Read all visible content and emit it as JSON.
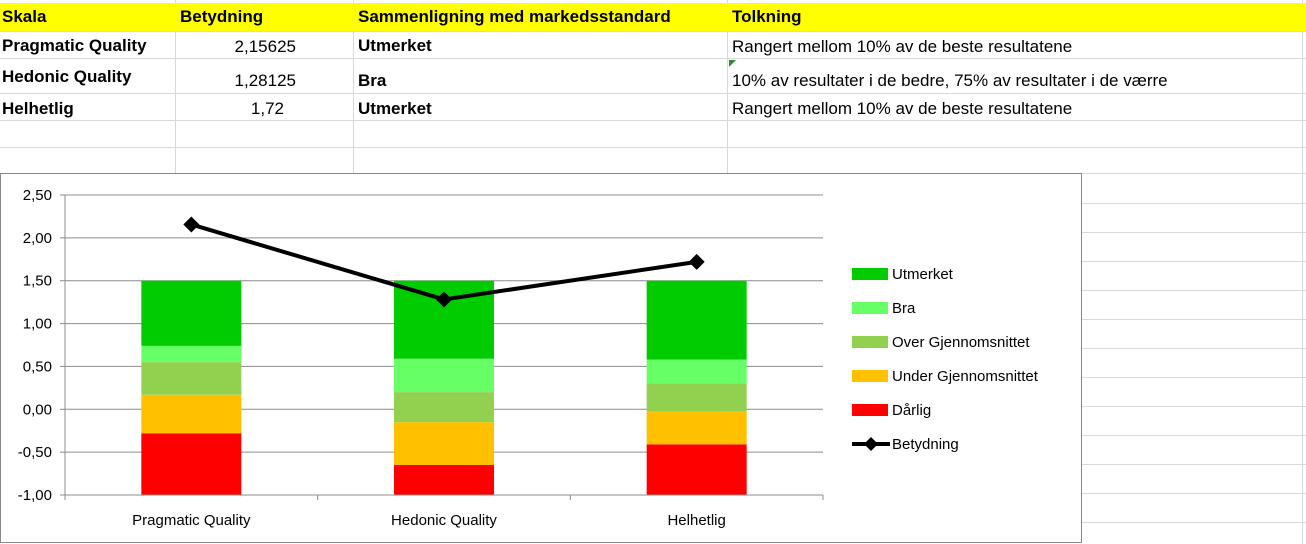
{
  "table": {
    "headers": [
      "Skala",
      "Betydning",
      "Sammenligning med markedsstandard",
      "Tolkning"
    ],
    "rows": [
      {
        "skala": "Pragmatic Quality",
        "betydning": "2,15625",
        "sammenligning": "Utmerket",
        "tolkning": "Rangert mellom 10% av de beste resultatene"
      },
      {
        "skala": "Hedonic Quality",
        "betydning": "1,28125",
        "sammenligning": "Bra",
        "tolkning": "10% av resultater i de bedre, 75% av  resultater i de værre"
      },
      {
        "skala": "Helhetlig",
        "betydning": "1,72",
        "sammenligning": "Utmerket",
        "tolkning": "Rangert mellom 10% av de beste resultatene"
      }
    ]
  },
  "chart_data": {
    "type": "bar",
    "stacked": true,
    "categories": [
      "Pragmatic Quality",
      "Hedonic Quality",
      "Helhetlig"
    ],
    "series": [
      {
        "name": "Dårlig",
        "color": "#ff0000",
        "values": [
          0.72,
          0.35,
          0.59
        ]
      },
      {
        "name": "Under Gjennomsnittet",
        "color": "#ffc000",
        "values": [
          0.45,
          0.5,
          0.39
        ]
      },
      {
        "name": "Over Gjennomsnittet",
        "color": "#92d050",
        "values": [
          0.38,
          0.35,
          0.32
        ]
      },
      {
        "name": "Bra",
        "color": "#66ff66",
        "values": [
          0.19,
          0.39,
          0.28
        ]
      },
      {
        "name": "Utmerket",
        "color": "#00cc00",
        "values": [
          0.76,
          0.91,
          0.92
        ]
      }
    ],
    "line": {
      "name": "Betydning",
      "color": "#000000",
      "values": [
        2.15625,
        1.28125,
        1.72
      ]
    },
    "ylim": [
      -1.0,
      2.5
    ],
    "yticks": [
      "2,50",
      "2,00",
      "1,50",
      "1,00",
      "0,50",
      "0,00",
      "-0,50",
      "-1,00"
    ],
    "ytick_values": [
      2.5,
      2.0,
      1.5,
      1.0,
      0.5,
      0.0,
      -0.5,
      -1.0
    ],
    "legend_order": [
      "Utmerket",
      "Bra",
      "Over Gjennomsnittet",
      "Under Gjennomsnittet",
      "Dårlig",
      "Betydning"
    ],
    "legend_position": "right",
    "grid": true,
    "bar_base": -1.0
  }
}
